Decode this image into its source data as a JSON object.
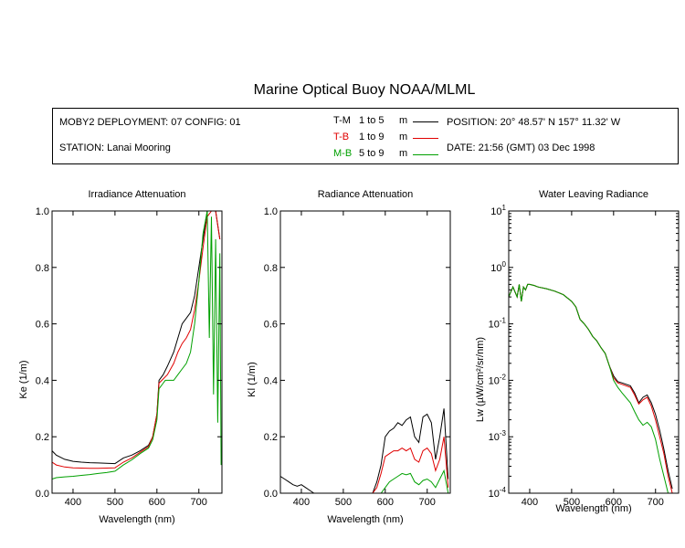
{
  "title": "Marine Optical Buoy NOAA/MLML",
  "info": {
    "deployment": "MOBY2 DEPLOYMENT: 07 CONFIG: 01",
    "station": "STATION: Lanai Mooring",
    "position": "POSITION: 20° 48.57' N   157° 11.32' W",
    "date": "DATE: 21:56 (GMT) 03 Dec 1998"
  },
  "legend": [
    {
      "code": "T-M",
      "range": "1 to 5",
      "unit": "m",
      "color": "#000000"
    },
    {
      "code": "T-B",
      "range": "1 to 9",
      "unit": "m",
      "color": "#e00000"
    },
    {
      "code": "M-B",
      "range": "5 to 9",
      "unit": "m",
      "color": "#00a000"
    }
  ],
  "colors": {
    "T-M": "#000000",
    "T-B": "#e00000",
    "M-B": "#00a000"
  },
  "chart_data": [
    {
      "type": "line",
      "title": "Irradiance Attenuation",
      "xlabel": "Wavelength (nm)",
      "ylabel": "Ke (1/m)",
      "xlim": [
        350,
        755
      ],
      "ylim": [
        0.0,
        1.0
      ],
      "xticks": [
        400,
        500,
        600,
        700
      ],
      "yticks": [
        0.0,
        0.2,
        0.4,
        0.6,
        0.8,
        1.0
      ],
      "ytick_labels": [
        "0.0",
        "0.2",
        "0.4",
        "0.6",
        "0.8",
        "1.0"
      ],
      "series": [
        {
          "name": "T-M",
          "x": [
            350,
            360,
            380,
            400,
            420,
            440,
            460,
            480,
            500,
            520,
            540,
            560,
            580,
            590,
            600,
            605,
            615,
            625,
            640,
            650,
            660,
            670,
            680,
            690,
            700,
            710,
            720,
            730,
            740,
            750
          ],
          "y": [
            0.15,
            0.135,
            0.12,
            0.113,
            0.11,
            0.108,
            0.107,
            0.106,
            0.105,
            0.125,
            0.135,
            0.15,
            0.17,
            0.2,
            0.28,
            0.4,
            0.42,
            0.45,
            0.5,
            0.55,
            0.6,
            0.62,
            0.64,
            0.7,
            0.8,
            0.9,
            1.0,
            1.0,
            1.0,
            0.9
          ]
        },
        {
          "name": "T-B",
          "x": [
            350,
            360,
            380,
            400,
            420,
            440,
            460,
            480,
            500,
            520,
            540,
            560,
            580,
            590,
            600,
            605,
            615,
            625,
            640,
            650,
            660,
            670,
            680,
            690,
            700,
            710,
            720,
            730,
            740,
            750
          ],
          "y": [
            0.11,
            0.1,
            0.093,
            0.09,
            0.089,
            0.088,
            0.088,
            0.089,
            0.09,
            0.11,
            0.125,
            0.145,
            0.165,
            0.2,
            0.28,
            0.39,
            0.405,
            0.42,
            0.46,
            0.5,
            0.53,
            0.55,
            0.58,
            0.65,
            0.75,
            0.87,
            0.98,
            1.0,
            1.0,
            0.9
          ]
        },
        {
          "name": "M-B",
          "x": [
            350,
            360,
            380,
            400,
            420,
            440,
            460,
            480,
            500,
            520,
            540,
            560,
            580,
            590,
            600,
            605,
            615,
            620,
            640,
            650,
            660,
            670,
            680,
            690,
            700,
            710,
            720,
            725,
            730,
            735,
            740,
            745,
            750,
            753
          ],
          "y": [
            0.05,
            0.055,
            0.058,
            0.06,
            0.063,
            0.066,
            0.07,
            0.073,
            0.078,
            0.1,
            0.118,
            0.14,
            0.16,
            0.19,
            0.26,
            0.37,
            0.39,
            0.4,
            0.4,
            0.42,
            0.44,
            0.46,
            0.5,
            0.6,
            0.75,
            0.92,
            1.0,
            0.55,
            0.98,
            0.35,
            0.9,
            0.25,
            0.85,
            0.1
          ]
        }
      ]
    },
    {
      "type": "line",
      "title": "Radiance Attenuation",
      "xlabel": "Wavelength (nm)",
      "ylabel": "Kl (1/m)",
      "xlim": [
        350,
        755
      ],
      "ylim": [
        0.0,
        1.0
      ],
      "xticks": [
        400,
        500,
        600,
        700
      ],
      "yticks": [
        0.0,
        0.2,
        0.4,
        0.6,
        0.8,
        1.0
      ],
      "ytick_labels": [
        "0.0",
        "0.2",
        "0.4",
        "0.6",
        "0.8",
        "1.0"
      ],
      "series": [
        {
          "name": "T-M",
          "x": [
            350,
            360,
            370,
            380,
            390,
            400,
            410,
            420,
            430,
            440,
            450,
            480,
            500,
            540,
            560,
            570,
            580,
            590,
            600,
            610,
            620,
            630,
            640,
            650,
            660,
            670,
            680,
            690,
            700,
            710,
            720,
            730,
            740,
            750
          ],
          "y": [
            0.06,
            0.05,
            0.04,
            0.03,
            0.025,
            0.03,
            0.02,
            0.01,
            0.0,
            0.0,
            0.0,
            0.0,
            0.0,
            0.0,
            0.0,
            0.0,
            0.04,
            0.1,
            0.2,
            0.22,
            0.23,
            0.25,
            0.24,
            0.26,
            0.27,
            0.2,
            0.18,
            0.27,
            0.28,
            0.25,
            0.12,
            0.2,
            0.3,
            0.05
          ]
        },
        {
          "name": "T-B",
          "x": [
            350,
            380,
            400,
            500,
            540,
            560,
            570,
            580,
            590,
            600,
            610,
            620,
            630,
            640,
            650,
            660,
            670,
            680,
            690,
            700,
            710,
            720,
            730,
            740,
            750
          ],
          "y": [
            0.0,
            0.0,
            0.0,
            0.0,
            0.0,
            0.0,
            0.0,
            0.02,
            0.07,
            0.13,
            0.14,
            0.15,
            0.15,
            0.16,
            0.15,
            0.16,
            0.12,
            0.11,
            0.15,
            0.16,
            0.14,
            0.08,
            0.12,
            0.2,
            0.02
          ]
        },
        {
          "name": "M-B",
          "x": [
            350,
            400,
            500,
            560,
            580,
            590,
            600,
            610,
            620,
            630,
            640,
            650,
            660,
            670,
            680,
            690,
            700,
            710,
            720,
            730,
            740,
            750
          ],
          "y": [
            0.0,
            0.0,
            0.0,
            0.0,
            0.0,
            0.0,
            0.02,
            0.04,
            0.05,
            0.06,
            0.07,
            0.065,
            0.07,
            0.04,
            0.03,
            0.045,
            0.05,
            0.04,
            0.02,
            0.05,
            0.08,
            0.0
          ]
        }
      ]
    },
    {
      "type": "line",
      "title": "Water Leaving Radiance",
      "xlabel": "Wavelength (nm)",
      "ylabel": "Lw (µW/cm²/sr/nm)",
      "yscale": "log",
      "xlim": [
        350,
        755
      ],
      "ylim": [
        0.0001,
        10
      ],
      "xticks": [
        400,
        500,
        600,
        700
      ],
      "yticks": [
        10,
        1,
        0.1,
        0.01,
        0.001,
        0.0001
      ],
      "ytick_labels": [
        [
          "10",
          "1"
        ],
        [
          "10",
          "0"
        ],
        [
          "10",
          "-1"
        ],
        [
          "10",
          "-2"
        ],
        [
          "10",
          "-3"
        ],
        [
          "10",
          "-4"
        ]
      ],
      "series": [
        {
          "name": "T-M",
          "x": [
            350,
            360,
            370,
            375,
            380,
            385,
            390,
            395,
            400,
            410,
            420,
            440,
            460,
            480,
            500,
            510,
            520,
            530,
            540,
            550,
            560,
            570,
            580,
            590,
            600,
            610,
            620,
            640,
            650,
            660,
            670,
            680,
            690,
            700,
            710,
            720,
            730,
            740
          ],
          "y": [
            0.3,
            0.45,
            0.3,
            0.5,
            0.25,
            0.45,
            0.4,
            0.5,
            0.5,
            0.48,
            0.45,
            0.42,
            0.38,
            0.33,
            0.25,
            0.2,
            0.12,
            0.1,
            0.08,
            0.06,
            0.05,
            0.038,
            0.03,
            0.018,
            0.012,
            0.0095,
            0.009,
            0.008,
            0.006,
            0.004,
            0.005,
            0.0055,
            0.004,
            0.0025,
            0.0013,
            0.0006,
            0.00025,
            0.00012
          ]
        },
        {
          "name": "T-B",
          "x": [
            350,
            360,
            370,
            375,
            380,
            385,
            390,
            395,
            400,
            410,
            420,
            440,
            460,
            480,
            500,
            510,
            520,
            530,
            540,
            550,
            560,
            570,
            580,
            590,
            600,
            610,
            620,
            640,
            650,
            660,
            670,
            680,
            690,
            700,
            710,
            720,
            730,
            740
          ],
          "y": [
            0.3,
            0.45,
            0.3,
            0.5,
            0.25,
            0.45,
            0.4,
            0.5,
            0.5,
            0.48,
            0.45,
            0.42,
            0.38,
            0.33,
            0.25,
            0.2,
            0.12,
            0.1,
            0.08,
            0.06,
            0.05,
            0.038,
            0.03,
            0.018,
            0.011,
            0.009,
            0.0085,
            0.0075,
            0.0055,
            0.0038,
            0.0045,
            0.005,
            0.0035,
            0.002,
            0.001,
            0.0005,
            0.0002,
            0.0001
          ]
        },
        {
          "name": "M-B",
          "x": [
            350,
            360,
            370,
            375,
            380,
            385,
            390,
            395,
            400,
            410,
            420,
            440,
            460,
            480,
            500,
            510,
            520,
            530,
            540,
            550,
            560,
            570,
            580,
            590,
            600,
            610,
            620,
            640,
            650,
            660,
            670,
            680,
            690,
            700,
            710,
            720,
            730,
            740
          ],
          "y": [
            0.3,
            0.45,
            0.3,
            0.5,
            0.25,
            0.45,
            0.4,
            0.5,
            0.5,
            0.48,
            0.45,
            0.42,
            0.38,
            0.33,
            0.25,
            0.2,
            0.12,
            0.1,
            0.08,
            0.06,
            0.05,
            0.038,
            0.03,
            0.018,
            0.01,
            0.0075,
            0.006,
            0.004,
            0.0028,
            0.002,
            0.0016,
            0.0018,
            0.0015,
            0.0009,
            0.0004,
            0.0002,
            0.0001,
            0.0001
          ]
        }
      ]
    }
  ]
}
